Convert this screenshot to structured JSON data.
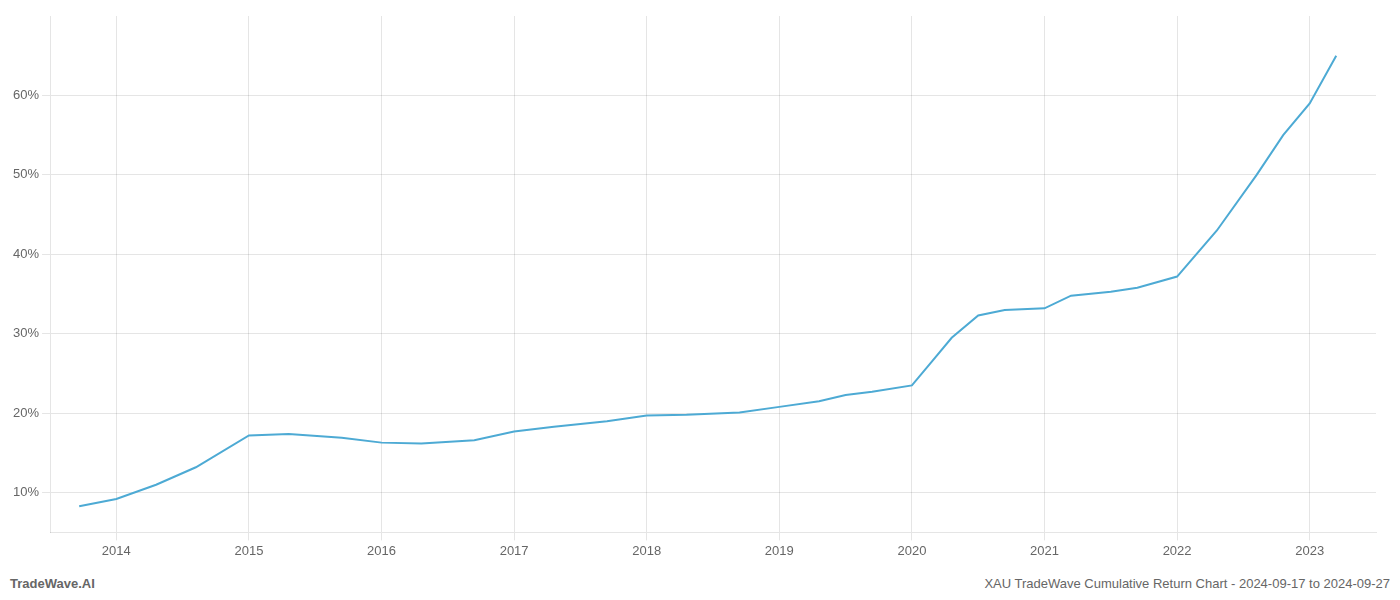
{
  "chart_data": {
    "type": "line",
    "x": [
      2013.72,
      2014.0,
      2014.3,
      2014.6,
      2015.0,
      2015.3,
      2015.7,
      2016.0,
      2016.3,
      2016.7,
      2017.0,
      2017.3,
      2017.7,
      2018.0,
      2018.3,
      2018.7,
      2019.0,
      2019.3,
      2019.5,
      2019.7,
      2020.0,
      2020.15,
      2020.3,
      2020.5,
      2020.7,
      2021.0,
      2021.2,
      2021.5,
      2021.7,
      2022.0,
      2022.3,
      2022.6,
      2022.8,
      2023.0,
      2023.2
    ],
    "values": [
      8.3,
      9.2,
      11.0,
      13.2,
      17.2,
      17.4,
      16.9,
      16.3,
      16.2,
      16.6,
      17.7,
      18.3,
      19.0,
      19.7,
      19.8,
      20.1,
      20.8,
      21.5,
      22.3,
      22.7,
      23.5,
      26.5,
      29.5,
      32.3,
      33.0,
      33.2,
      34.8,
      35.3,
      35.8,
      37.2,
      43.0,
      50.0,
      55.0,
      59.0,
      65.0
    ],
    "color": "#4daad4",
    "xlim": [
      2013.5,
      2023.5
    ],
    "ylim": [
      5,
      70
    ],
    "xticks": [
      2014,
      2015,
      2016,
      2017,
      2018,
      2019,
      2020,
      2021,
      2022,
      2023
    ],
    "yticks": [
      {
        "value": 10,
        "label": "10%"
      },
      {
        "value": 20,
        "label": "20%"
      },
      {
        "value": 30,
        "label": "30%"
      },
      {
        "value": 40,
        "label": "40%"
      },
      {
        "value": 50,
        "label": "50%"
      },
      {
        "value": 60,
        "label": "60%"
      }
    ],
    "grid": true,
    "annotations": [
      "TradeWave.AI",
      "XAU TradeWave Cumulative Return Chart - 2024-09-17 to 2024-09-27"
    ]
  }
}
